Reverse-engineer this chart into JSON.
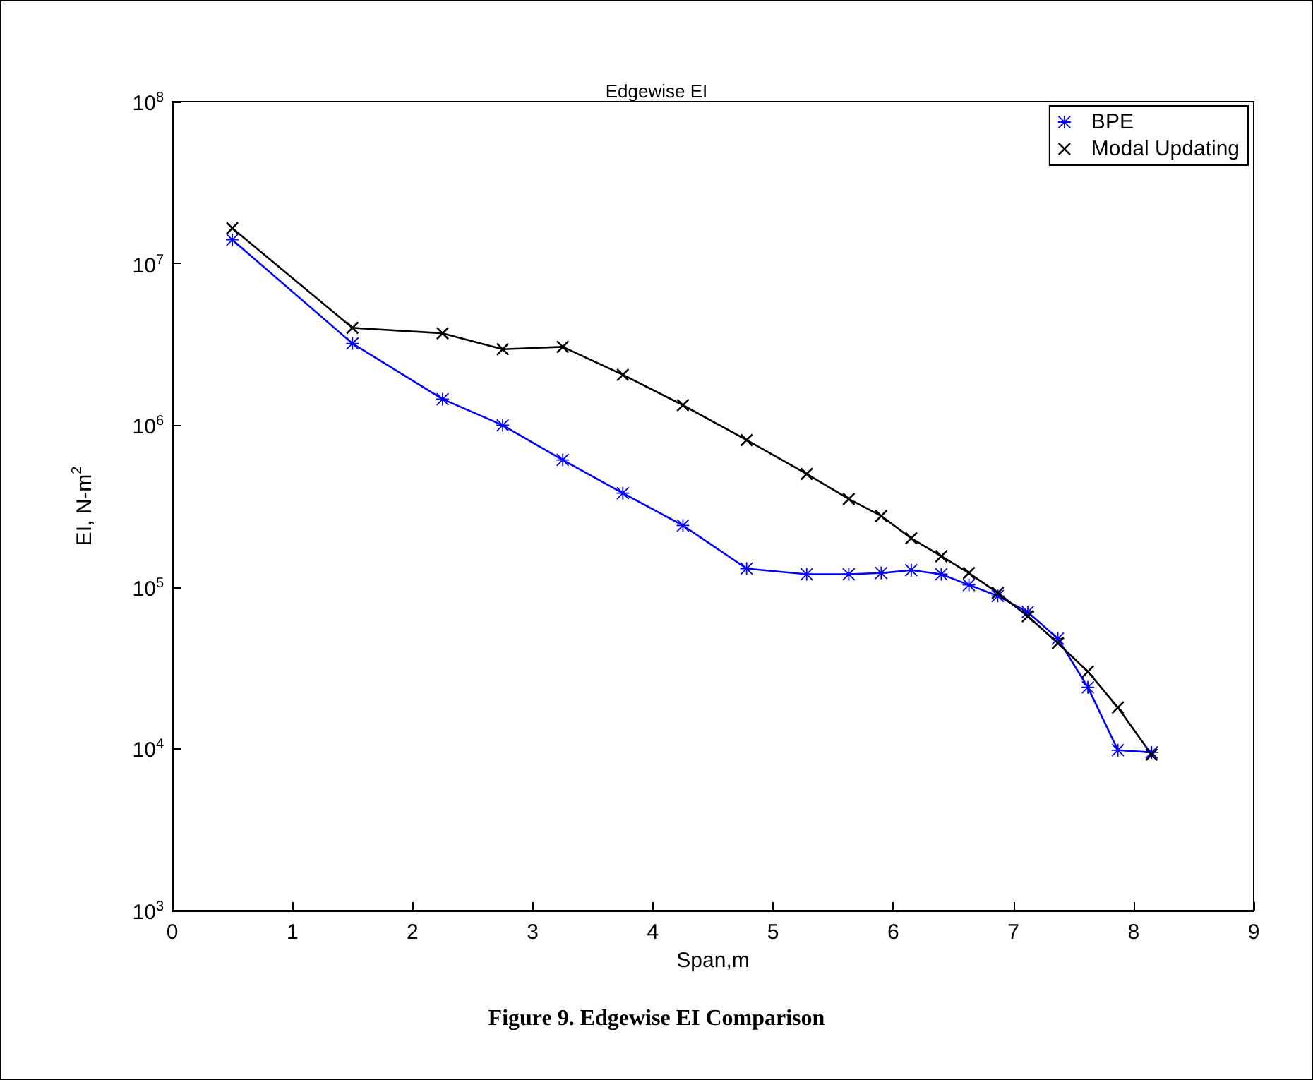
{
  "chart_data": {
    "type": "line",
    "title": "Edgewise EI",
    "xlabel": "Span,m",
    "ylabel": "EI, N-m$^{2}$",
    "annotations": [
      "Figure 9.  Edgewise EI Comparison"
    ],
    "log": "y",
    "grid": false,
    "legend": "top right",
    "line_style": "solid",
    "xlim": [
      0,
      9
    ],
    "xticks": [
      0,
      1,
      2,
      3,
      4,
      5,
      6,
      7,
      8,
      9
    ],
    "ylim": [
      1000,
      100000000
    ],
    "yticks": [
      {
        "value": 1000,
        "label": "10$^{3}$"
      },
      {
        "value": 10000,
        "label": "10$^{4}$"
      },
      {
        "value": 100000,
        "label": "10$^{5}$"
      },
      {
        "value": 1000000,
        "label": "10$^{6}$"
      },
      {
        "value": 10000000,
        "label": "10$^{7}$"
      },
      {
        "value": 100000000,
        "label": "10$^{8}$"
      }
    ],
    "x": [
      0.5,
      1.5,
      2.25,
      2.75,
      3.25,
      3.75,
      4.25,
      4.78,
      5.28,
      5.63,
      5.9,
      6.15,
      6.4,
      6.63,
      6.87,
      7.12,
      7.37,
      7.62,
      7.87,
      8.15
    ],
    "series": [
      {
        "name": "BPE",
        "color": "#0000ff",
        "marker": "star",
        "values": [
          14000000,
          3200000,
          1450000,
          1000000,
          610000,
          380000,
          240000,
          130000,
          120000,
          120000,
          122000,
          127000,
          120000,
          103000,
          88000,
          70000,
          48000,
          24000,
          9800,
          9500
        ]
      },
      {
        "name": "Modal Updating",
        "color": "#000000",
        "marker": "cross",
        "values": [
          16500000,
          4000000,
          3700000,
          2950000,
          3050000,
          2050000,
          1330000,
          810000,
          500000,
          350000,
          275000,
          200000,
          155000,
          122000,
          92000,
          66000,
          45000,
          30000,
          18000,
          9200
        ]
      }
    ]
  }
}
